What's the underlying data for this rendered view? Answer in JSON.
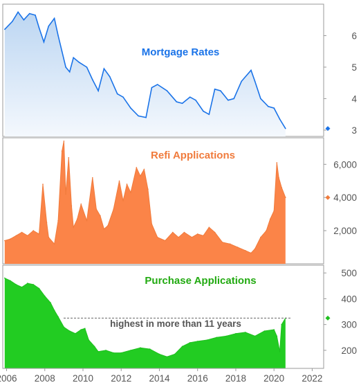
{
  "chart_data": [
    {
      "type": "area",
      "title": "Mortgage Rates",
      "colors": {
        "line": "#1a73e8",
        "fill_top": "#bcd6f2",
        "fill_bottom": "#f4f8fd",
        "marker": "#1a73e8",
        "title": "#1a73e8"
      },
      "ylim": [
        2.8,
        7.0
      ],
      "yticks": [
        3,
        4,
        5,
        6
      ],
      "ytick_labels": [
        "3",
        "4",
        "5",
        "6"
      ],
      "current_value": 3.05,
      "x": [
        2005.9,
        2006.3,
        2006.6,
        2006.9,
        2007.2,
        2007.5,
        2007.7,
        2007.95,
        2008.2,
        2008.5,
        2008.7,
        2008.9,
        2009.1,
        2009.3,
        2009.5,
        2009.8,
        2010.2,
        2010.5,
        2010.8,
        2011.1,
        2011.4,
        2011.8,
        2012.1,
        2012.5,
        2012.9,
        2013.3,
        2013.6,
        2013.9,
        2014.4,
        2014.9,
        2015.2,
        2015.6,
        2015.9,
        2016.3,
        2016.6,
        2016.9,
        2017.2,
        2017.6,
        2017.9,
        2018.3,
        2018.8,
        2019.0,
        2019.3,
        2019.7,
        2020.0,
        2020.3,
        2020.6
      ],
      "values": [
        6.2,
        6.45,
        6.75,
        6.5,
        6.7,
        6.65,
        6.25,
        5.8,
        6.3,
        6.55,
        6.0,
        5.5,
        5.0,
        4.85,
        5.3,
        5.15,
        5.0,
        4.6,
        4.25,
        4.95,
        4.7,
        4.15,
        4.05,
        3.7,
        3.45,
        3.4,
        4.35,
        4.45,
        4.25,
        3.9,
        3.85,
        4.05,
        3.95,
        3.6,
        3.5,
        4.3,
        4.25,
        3.95,
        4.0,
        4.55,
        4.9,
        4.55,
        4.0,
        3.75,
        3.7,
        3.35,
        3.05
      ]
    },
    {
      "type": "area",
      "title": "Refi Applications",
      "colors": {
        "fill": "#fb8448",
        "line": "#f07b3c",
        "marker": "#f07b3c",
        "title": "#f07b3c"
      },
      "ylim": [
        0,
        7600
      ],
      "yticks": [
        2000,
        4000,
        6000
      ],
      "ytick_labels": [
        "2,000",
        "4,000",
        "6,000"
      ],
      "current_value": 4000,
      "x": [
        2005.9,
        2006.2,
        2006.5,
        2006.8,
        2007.1,
        2007.4,
        2007.7,
        2007.9,
        2008.1,
        2008.2,
        2008.5,
        2008.7,
        2008.9,
        2009.0,
        2009.1,
        2009.25,
        2009.4,
        2009.5,
        2009.7,
        2009.9,
        2010.2,
        2010.5,
        2010.7,
        2010.9,
        2011.1,
        2011.3,
        2011.6,
        2011.9,
        2012.1,
        2012.3,
        2012.5,
        2012.8,
        2013.0,
        2013.2,
        2013.4,
        2013.6,
        2013.9,
        2014.3,
        2014.7,
        2015.0,
        2015.3,
        2015.7,
        2016.0,
        2016.3,
        2016.6,
        2016.9,
        2017.3,
        2017.7,
        2018.1,
        2018.5,
        2018.8,
        2019.0,
        2019.3,
        2019.6,
        2019.8,
        2020.0,
        2020.15,
        2020.25,
        2020.4,
        2020.6
      ],
      "values": [
        1400,
        1500,
        1700,
        1900,
        1700,
        2000,
        1800,
        4800,
        2500,
        1600,
        1200,
        2600,
        6800,
        7400,
        4200,
        6400,
        3500,
        2200,
        2700,
        3600,
        2600,
        5200,
        3300,
        2900,
        2100,
        2300,
        3300,
        5000,
        3800,
        4800,
        4300,
        5800,
        5300,
        5700,
        4500,
        2400,
        1600,
        1400,
        1900,
        1600,
        1900,
        1600,
        1800,
        1700,
        2200,
        1900,
        1300,
        1200,
        1000,
        800,
        650,
        900,
        1600,
        2000,
        2700,
        3200,
        6100,
        5200,
        4600,
        4000
      ]
    },
    {
      "type": "area",
      "title": "Purchase Applications",
      "colors": {
        "fill": "#22cc22",
        "line": "#1fbf1f",
        "marker": "#1fbf1f",
        "title": "#22aa11"
      },
      "ylim": [
        130,
        530
      ],
      "yticks": [
        200,
        300,
        400,
        500
      ],
      "ytick_labels": [
        "200",
        "300",
        "400",
        "500"
      ],
      "current_value": 325,
      "reference_line_value": 325,
      "annotation": "highest in more than 11 years",
      "x": [
        2005.9,
        2006.2,
        2006.5,
        2006.8,
        2007.1,
        2007.4,
        2007.7,
        2008.0,
        2008.3,
        2008.5,
        2008.7,
        2009.0,
        2009.3,
        2009.6,
        2009.9,
        2010.1,
        2010.3,
        2010.6,
        2010.8,
        2011.2,
        2011.6,
        2012.0,
        2012.5,
        2013.0,
        2013.5,
        2014.0,
        2014.4,
        2014.8,
        2015.2,
        2015.6,
        2016.0,
        2016.5,
        2017.0,
        2017.5,
        2018.0,
        2018.5,
        2019.0,
        2019.5,
        2020.0,
        2020.15,
        2020.3,
        2020.4,
        2020.6
      ],
      "values": [
        480,
        470,
        455,
        445,
        460,
        455,
        440,
        410,
        385,
        355,
        330,
        290,
        275,
        265,
        280,
        285,
        240,
        215,
        195,
        200,
        190,
        190,
        200,
        210,
        205,
        185,
        175,
        185,
        215,
        230,
        235,
        240,
        250,
        255,
        265,
        270,
        255,
        275,
        280,
        255,
        195,
        300,
        325
      ]
    }
  ],
  "x_axis": {
    "tick_labels": [
      "2006",
      "2008",
      "2010",
      "2012",
      "2014",
      "2016",
      "2018",
      "2020",
      "2022"
    ],
    "tick_values": [
      2006,
      2008,
      2010,
      2012,
      2014,
      2016,
      2018,
      2020,
      2022
    ],
    "range": [
      2005.8,
      2022.6
    ]
  }
}
